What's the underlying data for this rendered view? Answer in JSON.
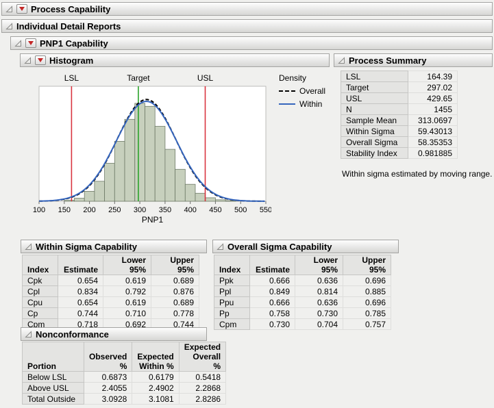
{
  "colors": {
    "spec_line": "#d9343f",
    "target_line": "#2aa32a",
    "within_curve": "#3565bd",
    "overall_curve": "#000000",
    "bar_fill": "#c7d0bd",
    "bar_stroke": "#6e7a67"
  },
  "outline": {
    "process_capability": "Process Capability",
    "individual_detail_reports": "Individual Detail Reports",
    "pnp1_capability": "PNP1 Capability",
    "histogram": "Histogram",
    "process_summary": "Process Summary",
    "within_sigma_capability": "Within Sigma Capability",
    "overall_sigma_capability": "Overall Sigma Capability",
    "nonconformance": "Nonconformance"
  },
  "process_summary": {
    "rows": [
      [
        "LSL",
        "164.39"
      ],
      [
        "Target",
        "297.02"
      ],
      [
        "USL",
        "429.65"
      ],
      [
        "N",
        "1455"
      ],
      [
        "Sample Mean",
        "313.0697"
      ],
      [
        "Within Sigma",
        "59.43013"
      ],
      [
        "Overall Sigma",
        "58.35353"
      ],
      [
        "Stability Index",
        "0.981885"
      ]
    ],
    "note": "Within sigma estimated by moving range."
  },
  "within_table": {
    "headers": [
      "Index",
      "Estimate",
      "Lower 95%",
      "Upper 95%"
    ],
    "rows": [
      [
        "Cpk",
        "0.654",
        "0.619",
        "0.689"
      ],
      [
        "Cpl",
        "0.834",
        "0.792",
        "0.876"
      ],
      [
        "Cpu",
        "0.654",
        "0.619",
        "0.689"
      ],
      [
        "Cp",
        "0.744",
        "0.710",
        "0.778"
      ],
      [
        "Cpm",
        "0.718",
        "0.692",
        "0.744"
      ]
    ]
  },
  "overall_table": {
    "headers": [
      "Index",
      "Estimate",
      "Lower 95%",
      "Upper 95%"
    ],
    "rows": [
      [
        "Ppk",
        "0.666",
        "0.636",
        "0.696"
      ],
      [
        "Ppl",
        "0.849",
        "0.814",
        "0.885"
      ],
      [
        "Ppu",
        "0.666",
        "0.636",
        "0.696"
      ],
      [
        "Pp",
        "0.758",
        "0.730",
        "0.785"
      ],
      [
        "Cpm",
        "0.730",
        "0.704",
        "0.757"
      ]
    ]
  },
  "nonconformance": {
    "headers": [
      "Portion",
      "Observed %",
      "Expected\nWithin %",
      "Expected\nOverall %"
    ],
    "rows": [
      [
        "Below LSL",
        "0.6873",
        "0.6179",
        "0.5418"
      ],
      [
        "Above USL",
        "2.4055",
        "2.4902",
        "2.2868"
      ],
      [
        "Total Outside",
        "3.0928",
        "3.1081",
        "2.8286"
      ]
    ]
  },
  "chart_data": {
    "type": "bar",
    "subtype": "histogram-with-normal-curves",
    "xlabel": "PNP1",
    "xlim": [
      100,
      550
    ],
    "x_ticks": [
      100,
      150,
      200,
      250,
      300,
      350,
      400,
      450,
      500,
      550
    ],
    "bin_start": 150,
    "bin_width": 20,
    "bar_heights_rel": [
      0.01,
      0.03,
      0.1,
      0.2,
      0.38,
      0.6,
      0.82,
      0.98,
      0.95,
      0.75,
      0.52,
      0.32,
      0.17,
      0.08,
      0.035,
      0.015,
      0.006
    ],
    "mean": 313.0697,
    "ref_lines": [
      {
        "label": "LSL",
        "value": 164.39,
        "color_key": "spec_line"
      },
      {
        "label": "Target",
        "value": 297.02,
        "color_key": "target_line"
      },
      {
        "label": "USL",
        "value": 429.65,
        "color_key": "spec_line"
      }
    ],
    "curves": [
      {
        "label": "Overall",
        "sigma": 58.35353,
        "style": "dashed",
        "color_key": "overall_curve"
      },
      {
        "label": "Within",
        "sigma": 59.43013,
        "style": "solid",
        "color_key": "within_curve"
      }
    ],
    "legend_title": "Density"
  }
}
